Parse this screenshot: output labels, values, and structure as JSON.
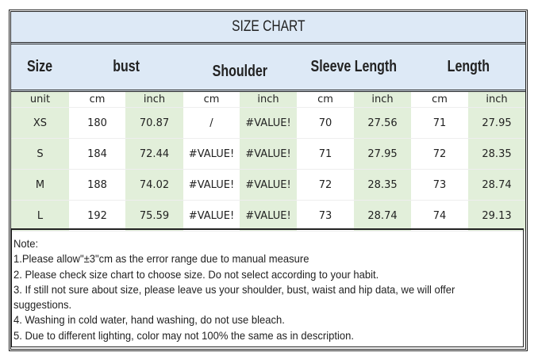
{
  "title": "SIZE CHART",
  "headers": [
    "Size",
    "bust",
    "Shoulder",
    "Sleeve Length",
    "Length"
  ],
  "units": [
    "unit",
    "cm",
    "inch",
    "cm",
    "inch",
    "cm",
    "inch",
    "cm",
    "inch"
  ],
  "rows": [
    [
      "XS",
      "180",
      "70.87",
      "/",
      "#VALUE!",
      "70",
      "27.56",
      "71",
      "27.95"
    ],
    [
      "S",
      "184",
      "72.44",
      "#VALUE!",
      "#VALUE!",
      "71",
      "27.95",
      "72",
      "28.35"
    ],
    [
      "M",
      "188",
      "74.02",
      "#VALUE!",
      "#VALUE!",
      "72",
      "28.35",
      "73",
      "28.74"
    ],
    [
      "L",
      "192",
      "75.59",
      "#VALUE!",
      "#VALUE!",
      "73",
      "28.74",
      "74",
      "29.13"
    ]
  ],
  "notes": [
    "Note:",
    "1.Please allow\"±3\"cm as the error range due to manual measure",
    "2. Please check size chart to choose size. Do not select according to your habit.",
    "3. If still not sure about size, please leave us your shoulder, bust, waist and hip data, we will offer",
    "suggestions.",
    "4. Washing in cold water, hand washing, do not use bleach.",
    "5. Due to different lighting, color may not 100% the same as in description."
  ],
  "colors": {
    "header_bg": "#dde9f6",
    "inch_column_bg": "#e2efda"
  }
}
